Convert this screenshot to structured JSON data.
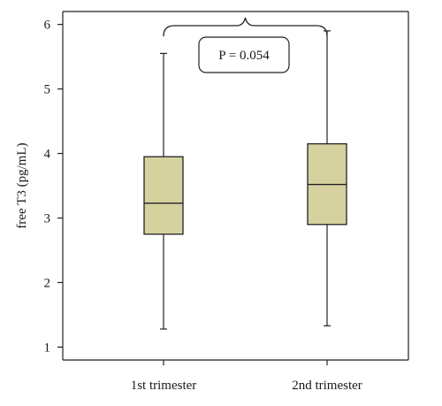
{
  "chart_data": {
    "type": "box",
    "title": "",
    "xlabel": "",
    "ylabel": "free T3 (pg/mL)",
    "ylim": [
      0.8,
      6.2
    ],
    "yticks": [
      "1",
      "2",
      "3",
      "4",
      "5",
      "6"
    ],
    "box_color": "#d6d29f",
    "categories": [
      "1st trimester",
      "2nd trimester"
    ],
    "boxes": [
      {
        "category": "1st trimester",
        "min": 1.28,
        "q1": 2.75,
        "median": 3.23,
        "q3": 3.95,
        "max": 5.55
      },
      {
        "category": "2nd trimester",
        "min": 1.33,
        "q1": 2.9,
        "median": 3.52,
        "q3": 4.15,
        "max": 5.9
      }
    ],
    "annotation": {
      "label": "P = 0.054"
    }
  }
}
